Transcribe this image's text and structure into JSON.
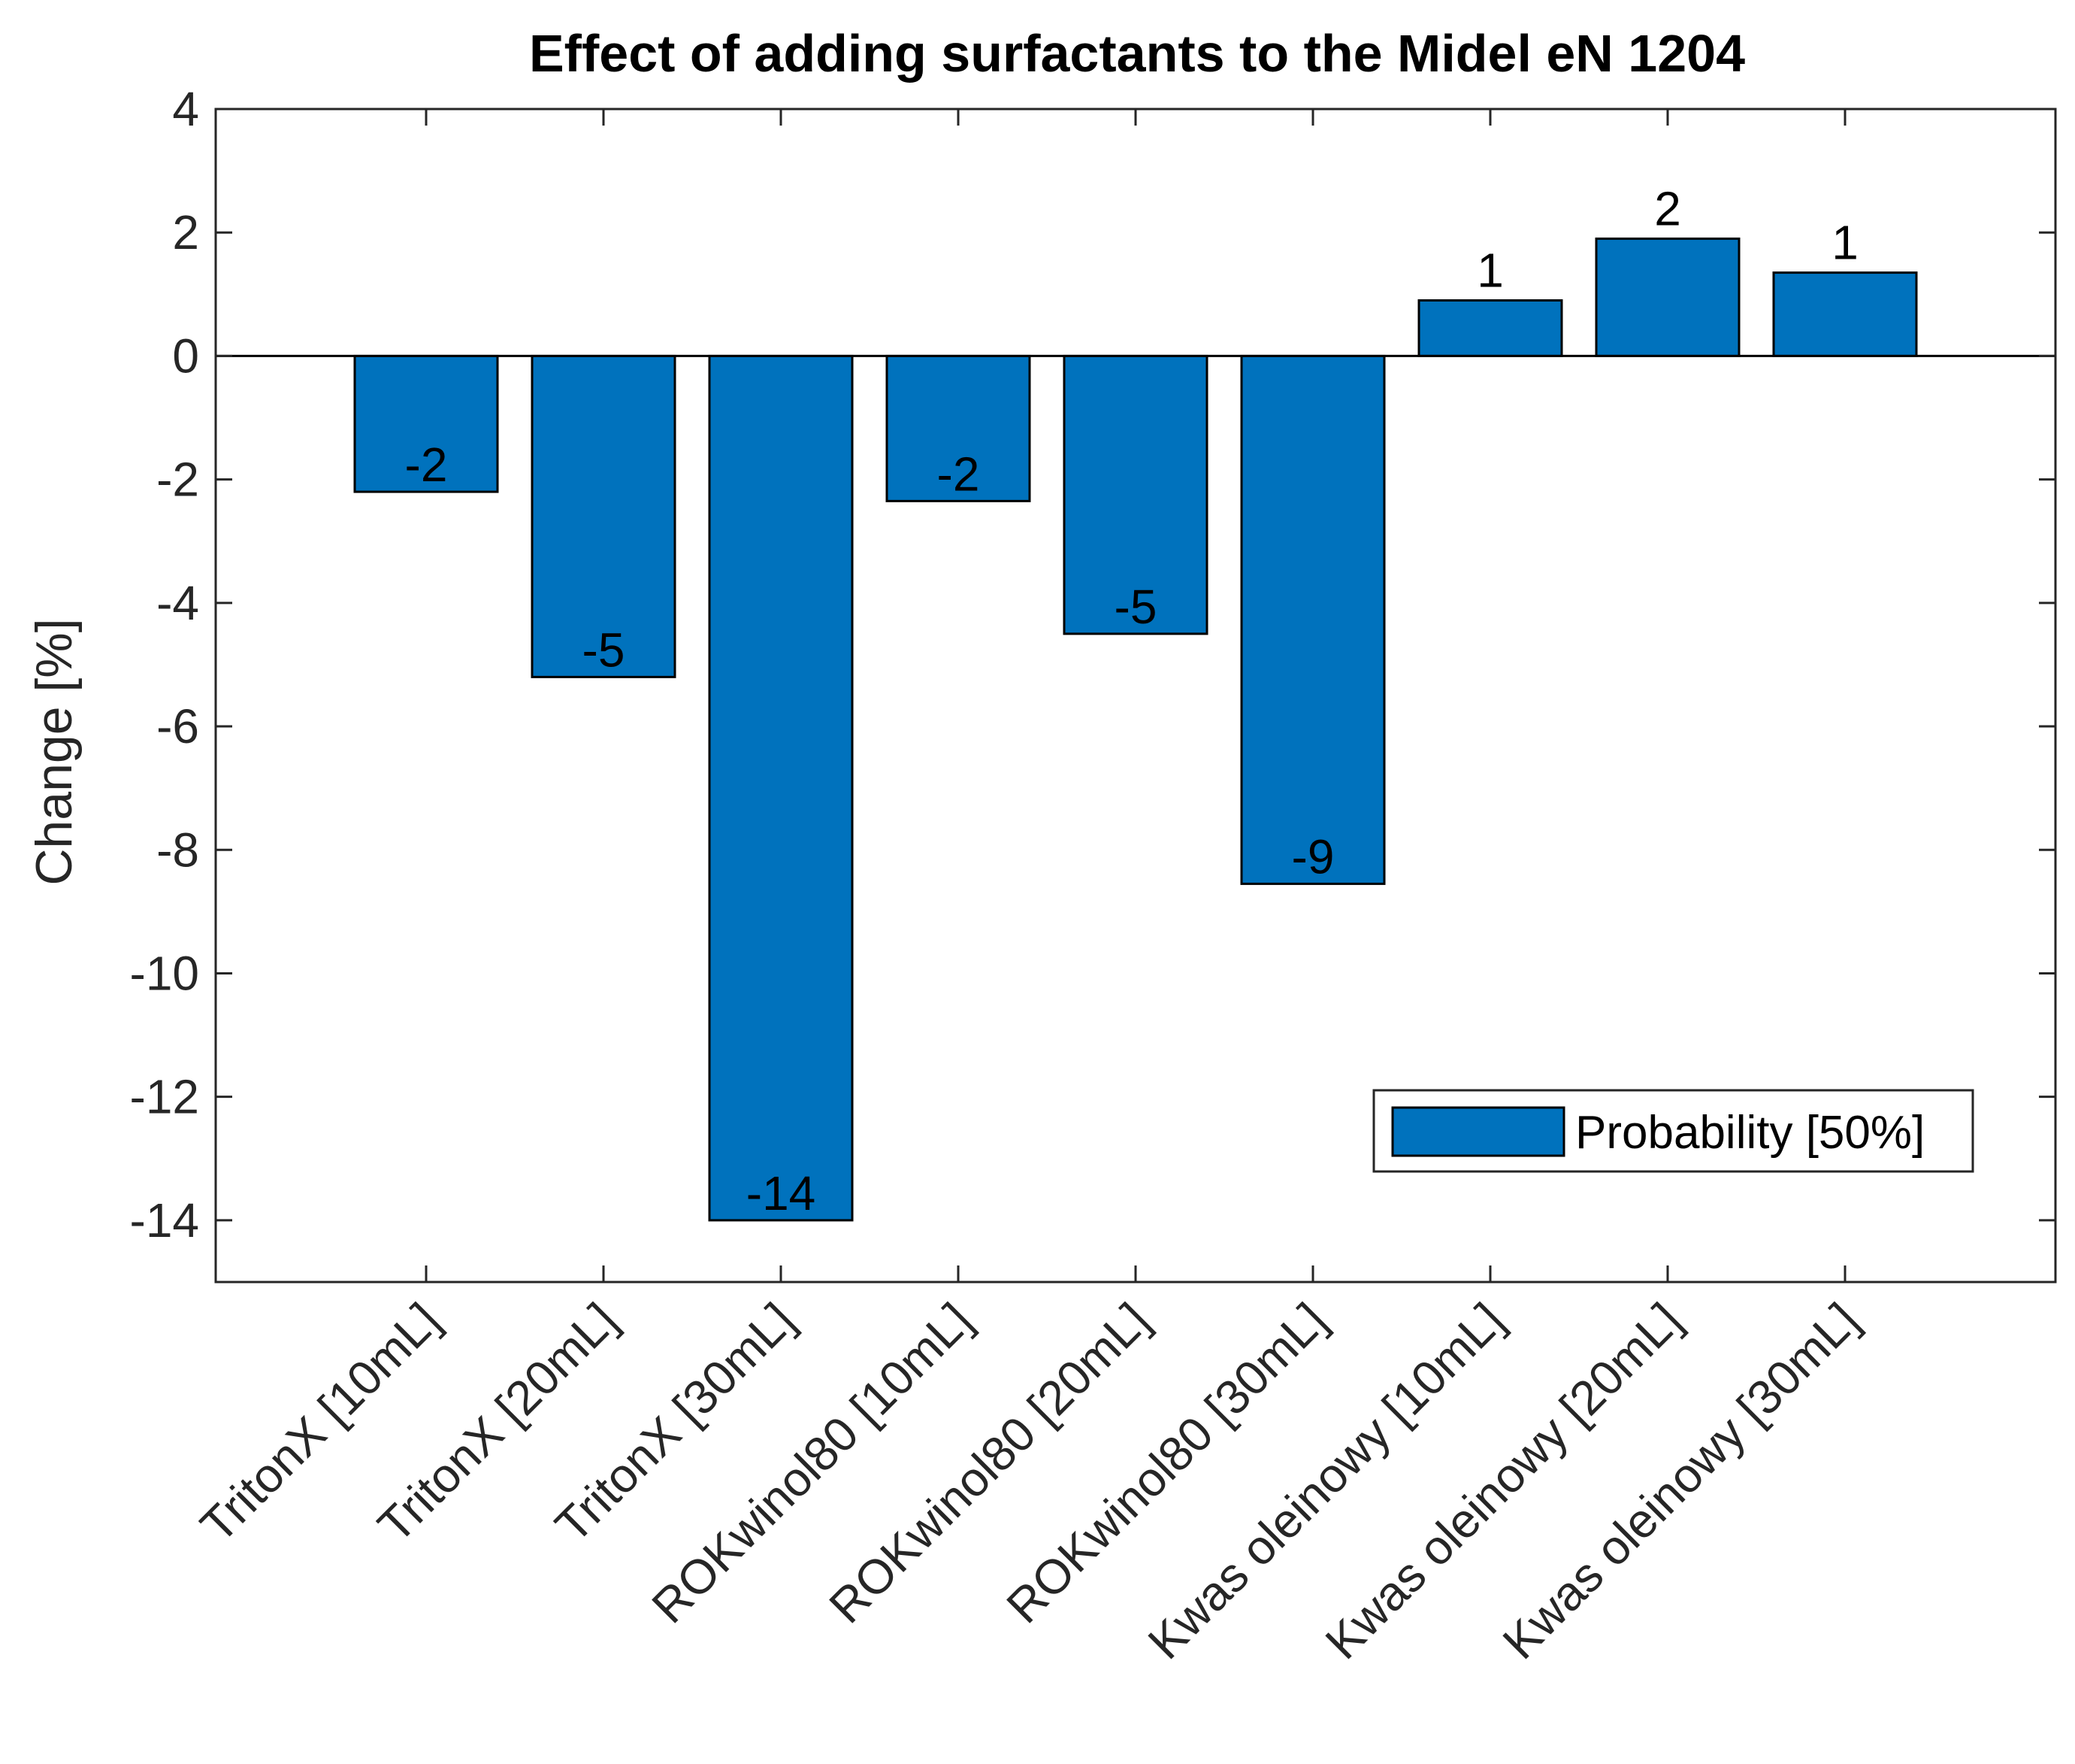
{
  "chart_data": {
    "type": "bar",
    "title": "Effect of adding surfactants to the Midel eN 1204",
    "xlabel": "",
    "ylabel": "Change [%]",
    "ylim": [
      -15,
      4
    ],
    "yticks": [
      4,
      2,
      0,
      -2,
      -4,
      -6,
      -8,
      -10,
      -12,
      -14
    ],
    "categories": [
      "TritonX [10mL]",
      "TritonX [20mL]",
      "TritonX [30mL]",
      "ROKwinol80 [10mL]",
      "ROKwinol80 [20mL]",
      "ROKwinol80 [30mL]",
      "Kwas oleinowy [10mL]",
      "Kwas oleinowy [20mL]",
      "Kwas oleinowy [30mL]"
    ],
    "series": [
      {
        "name": "Probability [50%]",
        "values": [
          -2.2,
          -5.2,
          -14.0,
          -2.35,
          -4.5,
          -8.55,
          0.9,
          1.9,
          1.35
        ],
        "labels": [
          "-2",
          "-5",
          "-14",
          "-2",
          "-5",
          "-9",
          "1",
          "2",
          "1"
        ]
      }
    ],
    "bar_color": "#0072BD",
    "grid": false,
    "legend_position": "bottom-right"
  }
}
